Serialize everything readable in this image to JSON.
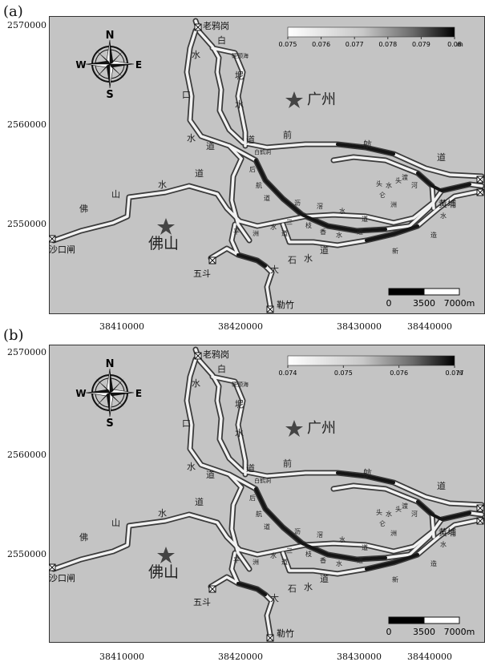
{
  "panels": [
    {
      "label": "(a)",
      "y_ticks": [
        "2570000",
        "2560000",
        "2550000"
      ],
      "x_ticks": [
        "38410000",
        "38420000",
        "38430000",
        "38440000"
      ],
      "legend": {
        "ticks": [
          "0.075",
          "0.076",
          "0.077",
          "0.078",
          "0.079",
          "0.08"
        ],
        "unit": "m"
      },
      "scalebar": {
        "labels": [
          "0",
          "3500",
          "7000m"
        ]
      }
    },
    {
      "label": "(b)",
      "y_ticks": [
        "2570000",
        "2560000",
        "2550000"
      ],
      "x_ticks": [
        "38410000",
        "38420000",
        "38430000",
        "38440000"
      ],
      "legend": {
        "ticks": [
          "0.074",
          "0.075",
          "0.076",
          "0.077"
        ],
        "unit": "m"
      },
      "scalebar": {
        "labels": [
          "0",
          "3500",
          "7000m"
        ]
      }
    }
  ],
  "compass": {
    "n": "N",
    "s": "S",
    "e": "E",
    "w": "W"
  },
  "map": {
    "cities": {
      "guangzhou": "广州",
      "foshan": "佛山"
    },
    "stations": {
      "laoyagang": "老鸦岗",
      "shakouzha": "沙口闸",
      "wudou": "五斗",
      "lezhu": "勒竹",
      "huangpu": "黄埔"
    },
    "river_chars": {
      "baini_1": "白",
      "baini_2": "坭",
      "shuidao_w_1": "水",
      "shuidao_w_2": "口",
      "shuidao_w_3": "水",
      "shuidao_w_4": "道",
      "shuidao_e_1": "水",
      "shuidao_e_2": "道",
      "hangdao_1": "前",
      "hangdao_2": "航",
      "hangdao_3": "道",
      "fsshui_1": "佛",
      "fsshui_2": "山",
      "fsshui_3": "水",
      "fsshui_4": "道",
      "shishui_1": "大",
      "shishui_2": "石",
      "shishui_3": "水",
      "shishui_4": "道",
      "hou_1": "后",
      "hou_2": "航",
      "hou_3": "道",
      "lx_1": "沥",
      "lx_2": "滘",
      "lx_3": "水",
      "lx_4": "道",
      "sl_1": "三",
      "sl_2": "枝",
      "sl_3": "香",
      "sl_4": "水",
      "sl_5": "道",
      "pz_1": "平",
      "pz_2": "洲",
      "pz_3": "水",
      "pz_4": "道",
      "xinzao_1": "新",
      "xinzao_2": "造",
      "xinzao_3": "水",
      "hu_1": "仑",
      "hu_2": "头",
      "hu_3": "水",
      "dl_1": "洲",
      "dl_2": "头",
      "dl_3": "渡",
      "dl_4": "河",
      "jinghai": "硬颈海",
      "pair": "白鹤洞"
    }
  }
}
